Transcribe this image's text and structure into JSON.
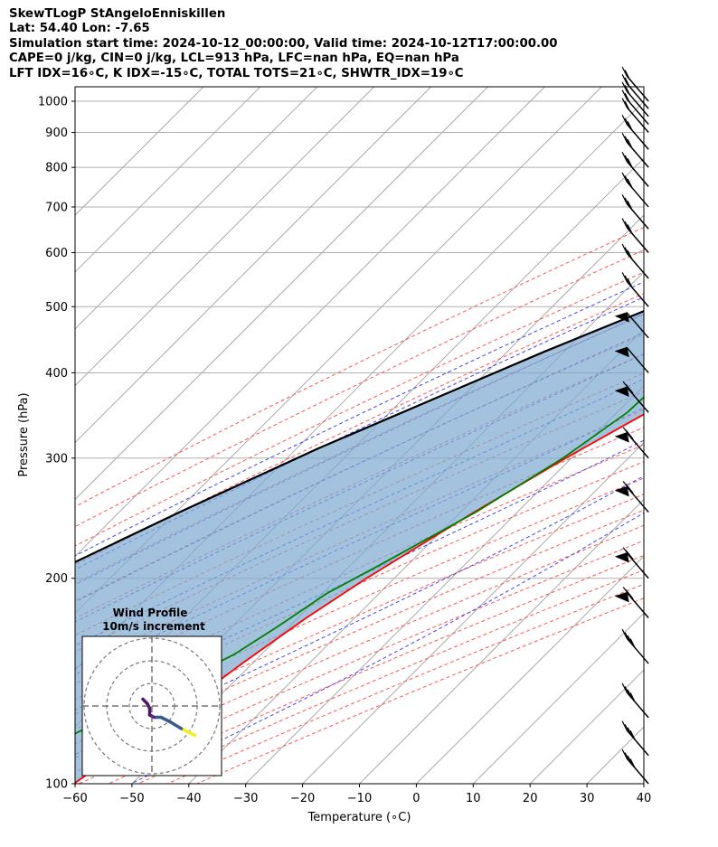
{
  "header": {
    "line1": "SkewTLogP StAngeloEnniskillen",
    "line2": "Lat: 54.40   Lon: -7.65",
    "line3": "Simulation start time: 2024-10-12_00:00:00, Valid time: 2024-10-12T17:00:00.00",
    "line4": "CAPE=0 j/kg, CIN=0 j/kg, LCL=913 hPa, LFC=nan hPa, EQ=nan hPa",
    "line5": "LFT IDX=16∘C, K IDX=-15∘C, TOTAL TOTS=21∘C, SHWTR_IDX=19∘C"
  },
  "chart_data": {
    "type": "line",
    "title": "SkewTLogP StAngeloEnniskillen",
    "xlabel": "Temperature (∘C)",
    "ylabel": "Pressure (hPa)",
    "xlim": [
      -60,
      40
    ],
    "ylim": [
      1050,
      100
    ],
    "y_scale": "log",
    "grid": true,
    "x_ticks": [
      -60,
      -50,
      -40,
      -30,
      -20,
      -10,
      0,
      10,
      20,
      30,
      40
    ],
    "x_tick_labels": [
      "−60",
      "−50",
      "−40",
      "−30",
      "−20",
      "−10",
      "0",
      "10",
      "20",
      "30",
      "40"
    ],
    "y_ticks": [
      1000,
      900,
      800,
      700,
      600,
      500,
      400,
      300,
      200,
      100
    ],
    "y_tick_labels": [
      "1000",
      "900",
      "800",
      "700",
      "600",
      "500",
      "400",
      "300",
      "200",
      "100"
    ],
    "colors": {
      "temperature": "#ff0000",
      "dewpoint": "#008000",
      "parcel": "#000000",
      "cin_fill": "#7fabd1",
      "dry_adiabat": "#ff5555",
      "moist_adiabat": "#4444ee",
      "mixing_ratio": "#9933cc",
      "isotherm": "#aaaaaa"
    },
    "series": [
      {
        "role": "temperature",
        "points": [
          [
            8.7,
            1000
          ],
          [
            7.0,
            975
          ],
          [
            5.3,
            950
          ],
          [
            4.2,
            925
          ],
          [
            3.7,
            900
          ],
          [
            2.9,
            850
          ],
          [
            1.0,
            800
          ],
          [
            -1.7,
            750
          ],
          [
            -4.8,
            700
          ],
          [
            -4.2,
            650
          ],
          [
            -5.4,
            600
          ],
          [
            -7.7,
            550
          ],
          [
            -10.3,
            500
          ],
          [
            -14.5,
            450
          ],
          [
            -19.1,
            400
          ],
          [
            -24.7,
            350
          ],
          [
            -31.0,
            300
          ],
          [
            -37.6,
            250
          ],
          [
            -44.9,
            200
          ],
          [
            -48.5,
            175
          ],
          [
            -51.8,
            150
          ],
          [
            -55.0,
            125
          ],
          [
            -58.1,
            110
          ],
          [
            -60.2,
            100
          ]
        ]
      },
      {
        "role": "dewpoint",
        "points": [
          [
            2.7,
            1000
          ],
          [
            2.2,
            950
          ],
          [
            -0.1,
            900
          ],
          [
            -12.1,
            825
          ],
          [
            -18.8,
            775
          ],
          [
            -21.3,
            725
          ],
          [
            -24.0,
            675
          ],
          [
            -32.0,
            625
          ],
          [
            -40.5,
            590
          ],
          [
            -38.7,
            550
          ],
          [
            -36.6,
            500
          ],
          [
            -37.8,
            450
          ],
          [
            -27.8,
            385
          ],
          [
            -28.2,
            350
          ],
          [
            -31.5,
            300
          ],
          [
            -37.3,
            250
          ],
          [
            -44.7,
            210
          ],
          [
            -49.2,
            190
          ],
          [
            -52.0,
            170
          ],
          [
            -54.7,
            155
          ],
          [
            -63.6,
            130
          ],
          [
            -78.4,
            100
          ]
        ]
      },
      {
        "role": "parcel",
        "points": [
          [
            8.7,
            1000
          ],
          [
            4.9,
            960
          ],
          [
            1.2,
            913
          ],
          [
            -2.7,
            860
          ],
          [
            -7.1,
            800
          ],
          [
            -12.6,
            740
          ],
          [
            -19.3,
            680
          ],
          [
            -26.5,
            620
          ],
          [
            -34.0,
            560
          ],
          [
            -42.0,
            500
          ],
          [
            -53.4,
            430
          ],
          [
            -63.9,
            370
          ],
          [
            -76.2,
            310
          ],
          [
            -89.4,
            250
          ],
          [
            -105.0,
            190
          ],
          [
            -118.2,
            150
          ],
          [
            -134.6,
            110
          ],
          [
            -140.0,
            100
          ]
        ]
      }
    ],
    "wind_barbs": {
      "x_position_deg": 37,
      "pressures": [
        1000,
        975,
        950,
        925,
        900,
        850,
        800,
        750,
        700,
        650,
        600,
        550,
        500,
        450,
        400,
        350,
        300,
        250,
        200,
        175,
        150,
        125,
        110,
        100
      ]
    },
    "hodograph": {
      "title_line1": "Wind Profile",
      "title_line2": "10m/s increment",
      "increment_ms": 10,
      "rings": [
        10,
        20,
        30
      ],
      "points_uv": [
        [
          19,
          -13
        ],
        [
          13,
          -10
        ],
        [
          8,
          -7
        ],
        [
          4,
          -5
        ],
        [
          1,
          -5
        ],
        [
          -1,
          -4
        ],
        [
          -1,
          -1
        ],
        [
          -2,
          1
        ],
        [
          -4,
          3
        ]
      ],
      "segment_colors": [
        "#f0f020",
        "#3a5a8c",
        "#3a5a8c",
        "#3a5a8c",
        "#5a2a7a",
        "#4b1a6a",
        "#4b1a6a",
        "#4b1a6a"
      ]
    }
  }
}
